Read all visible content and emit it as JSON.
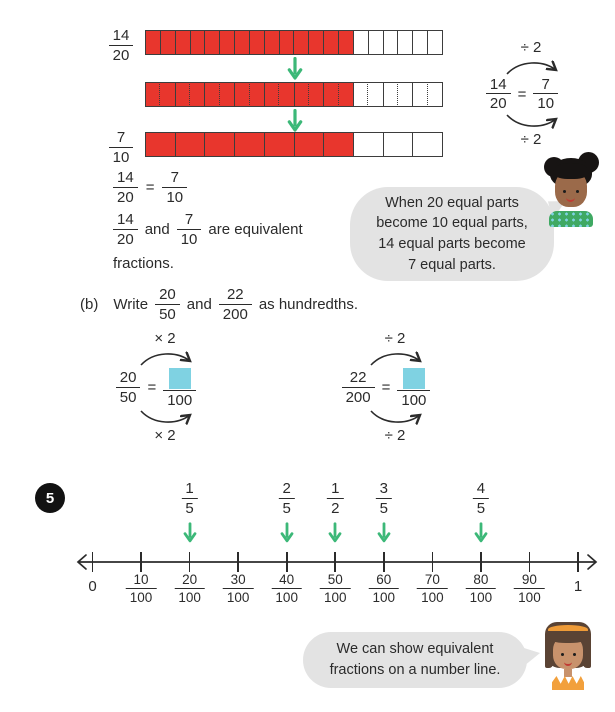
{
  "colors": {
    "red": "#e8362d",
    "green": "#3cb878",
    "blue": "#7fd2e2",
    "bubble_gray": "#e3e3e3",
    "ink": "#2b2b2b"
  },
  "page": {
    "bar_model": {
      "label_top": {
        "num": "14",
        "den": "20"
      },
      "label_bottom": {
        "num": "7",
        "den": "10"
      },
      "bar_twentieths": {
        "cells": 20,
        "filled": 14
      },
      "bar_regrouped": {
        "cells": 10,
        "filled": 7
      },
      "bar_tenths": {
        "cells": 10,
        "filled": 7
      }
    },
    "divide_diagram": {
      "op_top": "÷ 2",
      "op_bottom": "÷ 2",
      "lhs": {
        "num": "14",
        "den": "20"
      },
      "equals": "=",
      "rhs": {
        "num": "7",
        "den": "10"
      }
    },
    "equation": {
      "lhs": {
        "num": "14",
        "den": "20"
      },
      "equals": "=",
      "rhs": {
        "num": "7",
        "den": "10"
      }
    },
    "sentence": {
      "f1": {
        "num": "14",
        "den": "20"
      },
      "and": "and",
      "f2": {
        "num": "7",
        "den": "10"
      },
      "rest": "are equivalent",
      "rest2": "fractions."
    },
    "bubble1": {
      "lines": [
        "When 20 equal parts",
        "become 10 equal parts,",
        "14 equal parts become",
        "7 equal parts."
      ]
    },
    "part_b": {
      "label": "(b)",
      "verb": "Write",
      "f1": {
        "num": "20",
        "den": "50"
      },
      "and": "and",
      "f2": {
        "num": "22",
        "den": "200"
      },
      "suffix": "as hundredths."
    },
    "diagram_b1": {
      "op_top": "× 2",
      "op_bottom": "× 2",
      "lhs": {
        "num": "20",
        "den": "50"
      },
      "equals": "=",
      "rhs_den": "100"
    },
    "diagram_b2": {
      "op_top": "÷ 2",
      "op_bottom": "÷ 2",
      "lhs": {
        "num": "22",
        "den": "200"
      },
      "equals": "=",
      "rhs_den": "100"
    },
    "question5": {
      "badge": "5"
    },
    "numberline": {
      "start_label": "0",
      "end_label": "1",
      "tick_fractions": [
        {
          "num": "10",
          "den": "100"
        },
        {
          "num": "20",
          "den": "100"
        },
        {
          "num": "30",
          "den": "100"
        },
        {
          "num": "40",
          "den": "100"
        },
        {
          "num": "50",
          "den": "100"
        },
        {
          "num": "60",
          "den": "100"
        },
        {
          "num": "70",
          "den": "100"
        },
        {
          "num": "80",
          "den": "100"
        },
        {
          "num": "90",
          "den": "100"
        }
      ],
      "pointers": [
        {
          "at_tick": 2,
          "num": "1",
          "den": "5"
        },
        {
          "at_tick": 4,
          "num": "2",
          "den": "5"
        },
        {
          "at_tick": 5,
          "num": "1",
          "den": "2"
        },
        {
          "at_tick": 6,
          "num": "3",
          "den": "5"
        },
        {
          "at_tick": 8,
          "num": "4",
          "den": "5"
        }
      ]
    },
    "bubble2": {
      "lines": [
        "We can show equivalent",
        "fractions on a number line."
      ]
    }
  }
}
